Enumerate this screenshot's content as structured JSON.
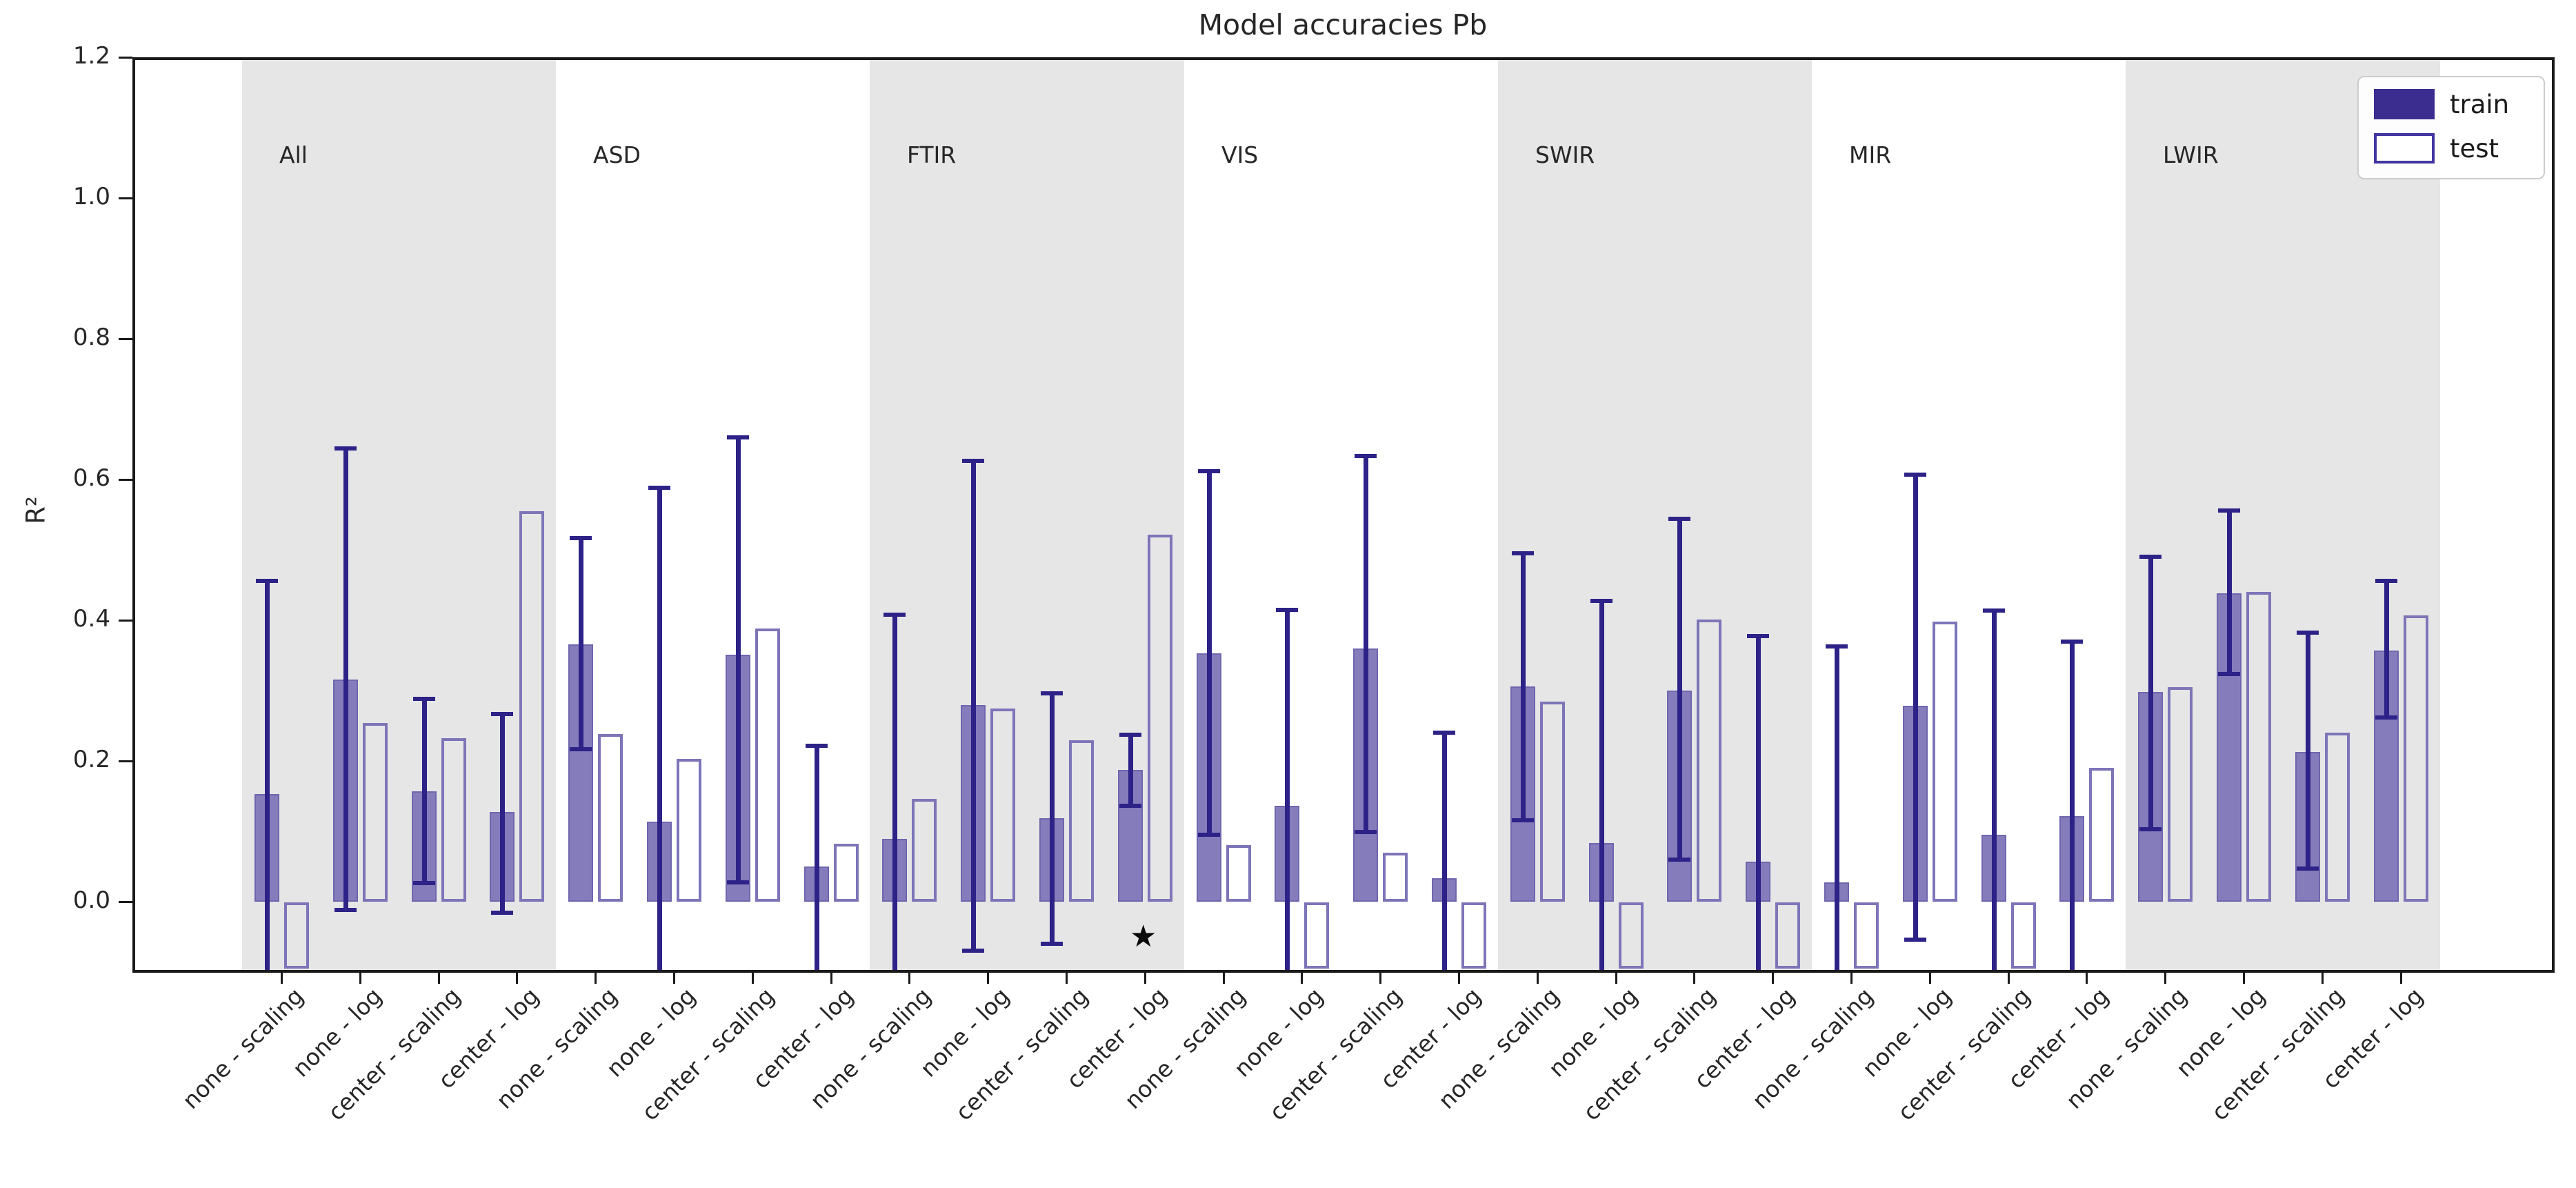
{
  "header": {
    "title": "Model accuracies Pb"
  },
  "axes": {
    "ylabel": "R²"
  },
  "legend": {
    "train": "train",
    "test": "test"
  },
  "colors": {
    "train_fill": "#857cbb",
    "train_edge": "#6f66af",
    "test_edge": "#7d75b8",
    "error_bar": "#2d2287",
    "legend_train": "#3a2d8f",
    "band_gray": "#e6e6e6",
    "axis": "#1a1a1a"
  },
  "chart_data": {
    "type": "bar",
    "title": "Model accuracies Pb",
    "ylabel": "R²",
    "ylim": [
      -0.097,
      1.2
    ],
    "yticks": [
      0.0,
      0.2,
      0.4,
      0.6,
      0.8,
      1.0,
      1.2
    ],
    "grid": false,
    "legend_position": "upper right",
    "legend_entries": [
      "train",
      "test"
    ],
    "category_labels": [
      "none - scaling",
      "none - log",
      "center - scaling",
      "center - log"
    ],
    "shaded_group_indices": [
      0,
      2,
      4,
      6
    ],
    "groups": [
      {
        "name": "All",
        "shaded": true,
        "bars": [
          {
            "label": "none - scaling",
            "train": 0.153,
            "train_err": [
              -0.098,
              0.457
            ],
            "test": -0.095
          },
          {
            "label": "none - log",
            "train": 0.316,
            "train_err": [
              -0.012,
              0.645
            ],
            "test": 0.254
          },
          {
            "label": "center - scaling",
            "train": 0.157,
            "train_err": [
              0.026,
              0.289
            ],
            "test": 0.232
          },
          {
            "label": "center - log",
            "train": 0.127,
            "train_err": [
              -0.016,
              0.268
            ],
            "test": 0.555
          }
        ]
      },
      {
        "name": "ASD",
        "shaded": false,
        "bars": [
          {
            "label": "none - scaling",
            "train": 0.366,
            "train_err": [
              0.217,
              0.518
            ],
            "test": 0.238
          },
          {
            "label": "none - log",
            "train": 0.114,
            "train_err": [
              -0.098,
              0.589
            ],
            "test": 0.203
          },
          {
            "label": "center - scaling",
            "train": 0.351,
            "train_err": [
              0.027,
              0.661
            ],
            "test": 0.388
          },
          {
            "label": "center - log",
            "train": 0.05,
            "train_err": [
              -0.098,
              0.223
            ],
            "test": 0.082
          }
        ]
      },
      {
        "name": "FTIR",
        "shaded": true,
        "bars": [
          {
            "label": "none - scaling",
            "train": 0.089,
            "train_err": [
              -0.098,
              0.409
            ],
            "test": 0.146
          },
          {
            "label": "none - log",
            "train": 0.279,
            "train_err": [
              -0.07,
              0.627
            ],
            "test": 0.275
          },
          {
            "label": "center - scaling",
            "train": 0.119,
            "train_err": [
              -0.06,
              0.297
            ],
            "test": 0.229
          },
          {
            "label": "center - log",
            "train": 0.187,
            "train_err": [
              0.136,
              0.238
            ],
            "test": 0.522,
            "star": true
          }
        ]
      },
      {
        "name": "VIS",
        "shaded": false,
        "bars": [
          {
            "label": "none - scaling",
            "train": 0.353,
            "train_err": [
              0.095,
              0.613
            ],
            "test": 0.08
          },
          {
            "label": "none - log",
            "train": 0.136,
            "train_err": [
              -0.098,
              0.416
            ],
            "test": -0.095
          },
          {
            "label": "center - scaling",
            "train": 0.36,
            "train_err": [
              0.099,
              0.634
            ],
            "test": 0.07
          },
          {
            "label": "center - log",
            "train": 0.033,
            "train_err": [
              -0.098,
              0.241
            ],
            "test": -0.095
          }
        ]
      },
      {
        "name": "SWIR",
        "shaded": true,
        "bars": [
          {
            "label": "none - scaling",
            "train": 0.306,
            "train_err": [
              0.116,
              0.496
            ],
            "test": 0.284
          },
          {
            "label": "none - log",
            "train": 0.083,
            "train_err": [
              -0.098,
              0.428
            ],
            "test": -0.095
          },
          {
            "label": "center - scaling",
            "train": 0.3,
            "train_err": [
              0.06,
              0.545
            ],
            "test": 0.401
          },
          {
            "label": "center - log",
            "train": 0.057,
            "train_err": [
              -0.098,
              0.378
            ],
            "test": -0.095
          }
        ]
      },
      {
        "name": "MIR",
        "shaded": false,
        "bars": [
          {
            "label": "none - scaling",
            "train": 0.027,
            "train_err": [
              -0.098,
              0.364
            ],
            "test": -0.095
          },
          {
            "label": "none - log",
            "train": 0.278,
            "train_err": [
              -0.054,
              0.608
            ],
            "test": 0.398
          },
          {
            "label": "center - scaling",
            "train": 0.095,
            "train_err": [
              -0.098,
              0.415
            ],
            "test": -0.095
          },
          {
            "label": "center - log",
            "train": 0.122,
            "train_err": [
              -0.098,
              0.371
            ],
            "test": 0.19
          }
        ]
      },
      {
        "name": "LWIR",
        "shaded": true,
        "bars": [
          {
            "label": "none - scaling",
            "train": 0.298,
            "train_err": [
              0.103,
              0.491
            ],
            "test": 0.305
          },
          {
            "label": "none - log",
            "train": 0.438,
            "train_err": [
              0.324,
              0.557
            ],
            "test": 0.44
          },
          {
            "label": "center - scaling",
            "train": 0.213,
            "train_err": [
              0.047,
              0.383
            ],
            "test": 0.24
          },
          {
            "label": "center - log",
            "train": 0.357,
            "train_err": [
              0.262,
              0.457
            ],
            "test": 0.407
          }
        ]
      }
    ],
    "annotations": [
      {
        "type": "star",
        "group": "FTIR",
        "category": "center - log",
        "y": -0.05,
        "symbol": "★"
      }
    ]
  }
}
